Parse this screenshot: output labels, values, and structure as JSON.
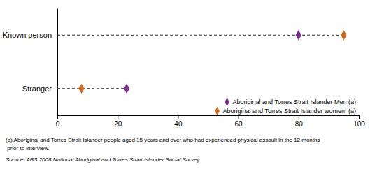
{
  "chart_data": {
    "type": "dot",
    "categories": [
      "Known person",
      "Stranger"
    ],
    "series": [
      {
        "name": "Aboriginal and Torres Strait Islander Men (a)",
        "color": "#7B2D8B",
        "marker": "diamond",
        "values": [
          80,
          23
        ]
      },
      {
        "name": "Aboriginal and Torres Strait Islander women  (a)",
        "color": "#D2691E",
        "marker": "diamond",
        "values": [
          95,
          8
        ]
      }
    ],
    "xlim": [
      0,
      100
    ],
    "xticks": [
      0,
      20,
      40,
      60,
      80,
      100
    ],
    "legend": "lower right",
    "grid": false,
    "annotations": [
      "(a) Aboriginal and Torres Strait Islander people aged 15 years and over who had experienced physical assault in the 12 months",
      " prior to interview.",
      "Source: ABS 2008 National Aboriginal and Torres Strait Islander Social Survey"
    ]
  }
}
